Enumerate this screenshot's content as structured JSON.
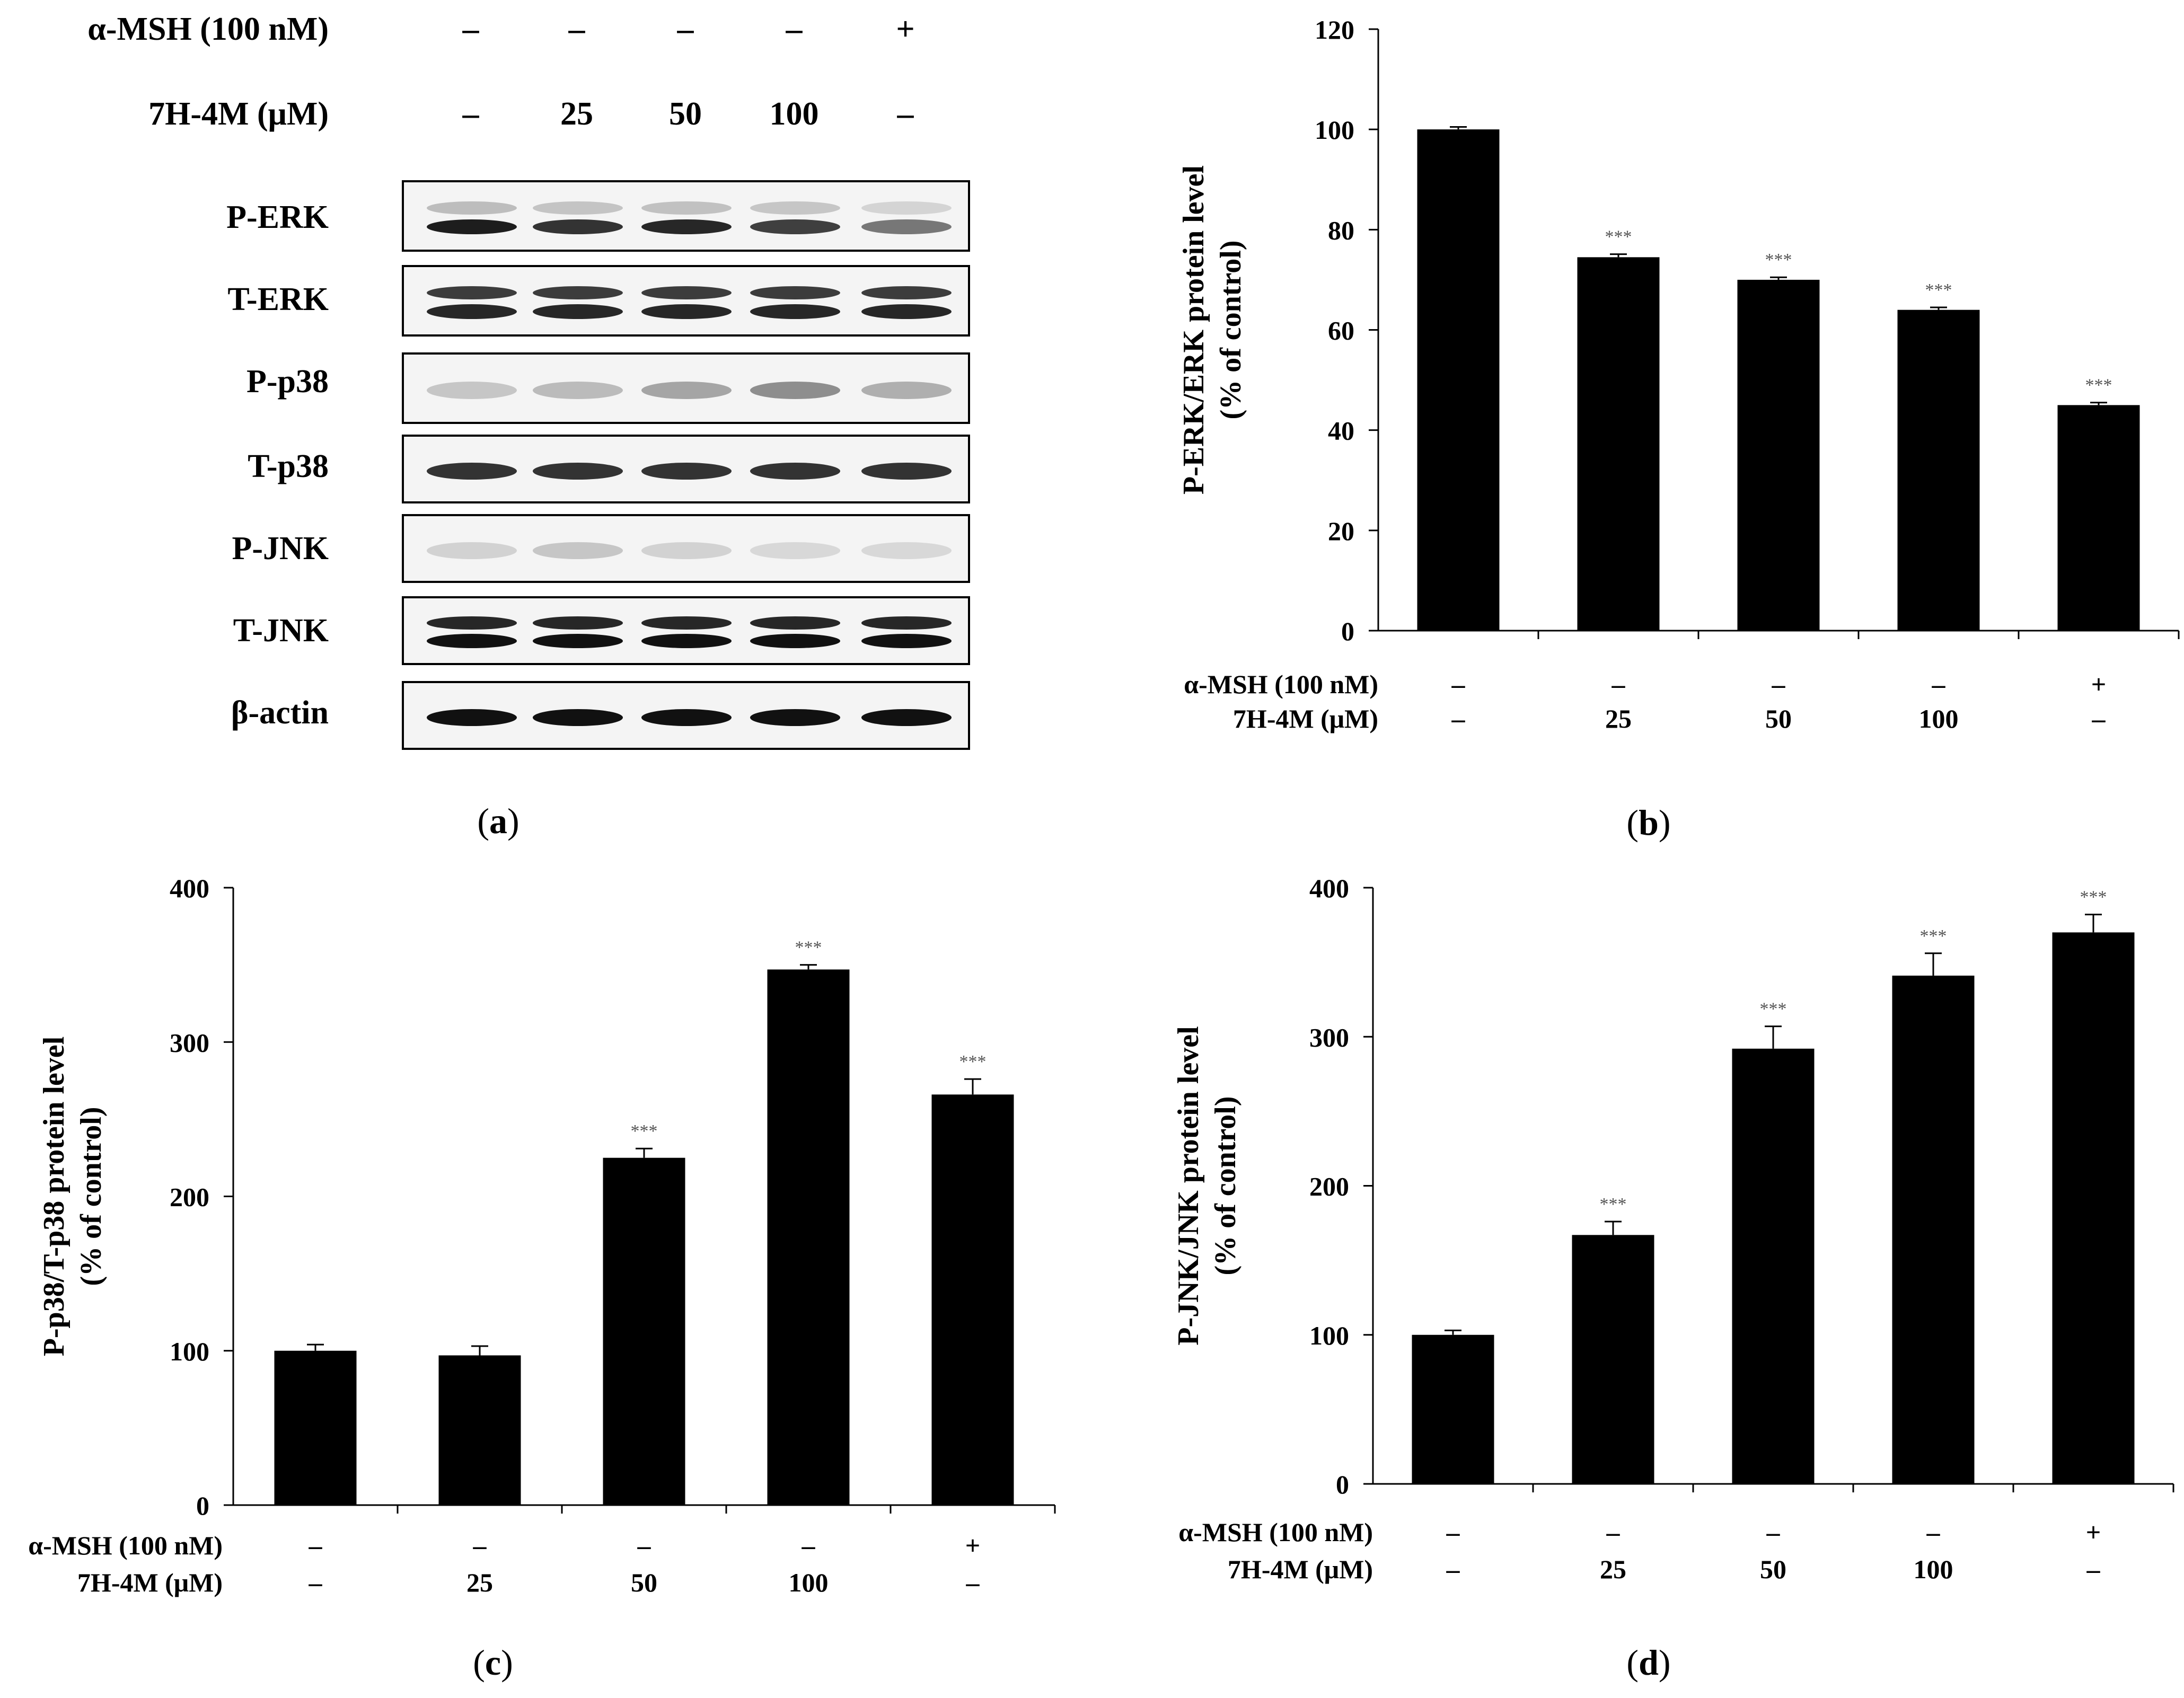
{
  "panel_a": {
    "conditions": [
      {
        "label": "α-MSH (100 nM)",
        "values": [
          "–",
          "–",
          "–",
          "–",
          "+"
        ]
      },
      {
        "label": "7H-4M (μM)",
        "values": [
          "–",
          "25",
          "50",
          "100",
          "–"
        ]
      }
    ],
    "blots": [
      {
        "label": "P-ERK",
        "intensity": [
          0.95,
          0.85,
          0.9,
          0.8,
          0.55
        ],
        "doublet": true,
        "top_faint": true
      },
      {
        "label": "T-ERK",
        "intensity": [
          0.9,
          0.9,
          0.9,
          0.9,
          0.9
        ],
        "doublet": true,
        "top_faint": false
      },
      {
        "label": "P-p38",
        "intensity": [
          0.2,
          0.25,
          0.35,
          0.45,
          0.3
        ],
        "doublet": false,
        "top_faint": false
      },
      {
        "label": "T-p38",
        "intensity": [
          0.85,
          0.85,
          0.85,
          0.85,
          0.85
        ],
        "doublet": false,
        "top_faint": false
      },
      {
        "label": "P-JNK",
        "intensity": [
          0.15,
          0.2,
          0.15,
          0.12,
          0.12
        ],
        "doublet": false,
        "top_faint": false
      },
      {
        "label": "T-JNK",
        "intensity": [
          1.0,
          1.0,
          1.0,
          1.0,
          1.0
        ],
        "doublet": true,
        "top_faint": false
      },
      {
        "label": "β-actin",
        "intensity": [
          1.0,
          1.0,
          1.0,
          1.0,
          1.0
        ],
        "doublet": false,
        "top_faint": false
      }
    ],
    "caption": "a"
  },
  "chart_data": [
    {
      "id": "b",
      "type": "bar",
      "caption": "b",
      "ylabel_line1": "P-ERK/ERK protein level",
      "ylabel_line2": "(% of control)",
      "ylim": [
        0,
        120
      ],
      "yticks": [
        0,
        20,
        40,
        60,
        80,
        100,
        120
      ],
      "values": [
        100,
        74.5,
        70,
        64,
        45
      ],
      "errors": [
        0.5,
        0.6,
        0.5,
        0.5,
        0.5
      ],
      "annotations": [
        "",
        "***",
        "***",
        "***",
        "***"
      ],
      "row_labels": [
        "α-MSH (100 nM)",
        "7H-4M (μM)"
      ],
      "rows": [
        [
          "–",
          "–",
          "–",
          "–",
          "+"
        ],
        [
          "–",
          "25",
          "50",
          "100",
          "–"
        ]
      ]
    },
    {
      "id": "c",
      "type": "bar",
      "caption": "c",
      "ylabel_line1": "P-p38/T-p38 protein level",
      "ylabel_line2": "(% of control)",
      "ylim": [
        0,
        400
      ],
      "yticks": [
        0,
        100,
        200,
        300,
        400
      ],
      "values": [
        100,
        97,
        225,
        347,
        266
      ],
      "errors": [
        4,
        6,
        6,
        3,
        10
      ],
      "annotations": [
        "",
        "",
        "***",
        "***",
        "***"
      ],
      "row_labels": [
        "α-MSH (100 nM)",
        "7H-4M (μM)"
      ],
      "rows": [
        [
          "–",
          "–",
          "–",
          "–",
          "+"
        ],
        [
          "–",
          "25",
          "50",
          "100",
          "–"
        ]
      ]
    },
    {
      "id": "d",
      "type": "bar",
      "caption": "d",
      "ylabel_line1": "P-JNK/JNK protein level",
      "ylabel_line2": "(% of control)",
      "ylim": [
        0,
        400
      ],
      "yticks": [
        0,
        100,
        200,
        300,
        400
      ],
      "values": [
        100,
        167,
        292,
        341,
        370
      ],
      "errors": [
        3,
        9,
        15,
        15,
        12
      ],
      "annotations": [
        "",
        "***",
        "***",
        "***",
        "***"
      ],
      "row_labels": [
        "α-MSH (100 nM)",
        "7H-4M (μM)"
      ],
      "rows": [
        [
          "–",
          "–",
          "–",
          "–",
          "+"
        ],
        [
          "–",
          "25",
          "50",
          "100",
          "–"
        ]
      ]
    }
  ]
}
